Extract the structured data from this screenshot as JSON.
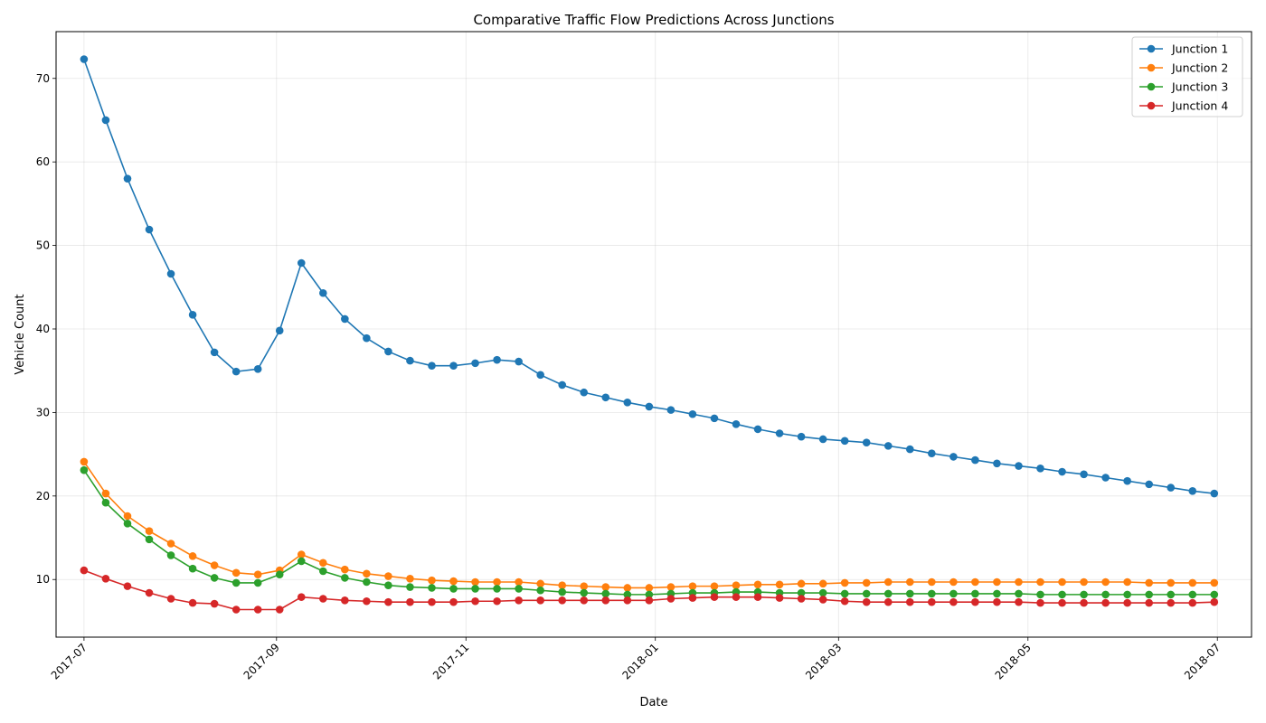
{
  "chart_data": {
    "type": "line",
    "title": "Comparative Traffic Flow Predictions Across Junctions",
    "xlabel": "Date",
    "ylabel": "Vehicle Count",
    "x_axis": {
      "type": "date",
      "range": [
        "2017-06-22",
        "2018-07-12"
      ],
      "ticks": [
        {
          "date": "2017-07-01",
          "label": "2017-07"
        },
        {
          "date": "2017-09-01",
          "label": "2017-09"
        },
        {
          "date": "2017-11-01",
          "label": "2017-11"
        },
        {
          "date": "2018-01-01",
          "label": "2018-01"
        },
        {
          "date": "2018-03-01",
          "label": "2018-03"
        },
        {
          "date": "2018-05-01",
          "label": "2018-05"
        },
        {
          "date": "2018-07-01",
          "label": "2018-07"
        }
      ]
    },
    "ylim": [
      3.1,
      75.6
    ],
    "yticks": [
      10,
      20,
      30,
      40,
      50,
      60,
      70
    ],
    "grid": true,
    "legend_position": "top-right",
    "x": [
      "2017-07-01",
      "2017-07-08",
      "2017-07-15",
      "2017-07-22",
      "2017-07-29",
      "2017-08-05",
      "2017-08-12",
      "2017-08-19",
      "2017-08-26",
      "2017-09-02",
      "2017-09-09",
      "2017-09-16",
      "2017-09-23",
      "2017-09-30",
      "2017-10-07",
      "2017-10-14",
      "2017-10-21",
      "2017-10-28",
      "2017-11-04",
      "2017-11-11",
      "2017-11-18",
      "2017-11-25",
      "2017-12-02",
      "2017-12-09",
      "2017-12-16",
      "2017-12-23",
      "2017-12-30",
      "2018-01-06",
      "2018-01-13",
      "2018-01-20",
      "2018-01-27",
      "2018-02-03",
      "2018-02-10",
      "2018-02-17",
      "2018-02-24",
      "2018-03-03",
      "2018-03-10",
      "2018-03-17",
      "2018-03-24",
      "2018-03-31",
      "2018-04-07",
      "2018-04-14",
      "2018-04-21",
      "2018-04-28",
      "2018-05-05",
      "2018-05-12",
      "2018-05-19",
      "2018-05-26",
      "2018-06-02",
      "2018-06-09",
      "2018-06-16",
      "2018-06-23",
      "2018-06-30"
    ],
    "series": [
      {
        "name": "Junction 1",
        "color": "#1f77b4",
        "values": [
          72.3,
          65.0,
          58.0,
          51.9,
          46.6,
          41.7,
          37.2,
          34.9,
          35.2,
          39.8,
          47.9,
          44.3,
          41.2,
          38.9,
          37.3,
          36.2,
          35.6,
          35.6,
          35.9,
          36.3,
          36.1,
          34.5,
          33.3,
          32.4,
          31.8,
          31.2,
          30.7,
          30.3,
          29.8,
          29.3,
          28.6,
          28.0,
          27.5,
          27.1,
          26.8,
          26.6,
          26.4,
          26.0,
          25.6,
          25.1,
          24.7,
          24.3,
          23.9,
          23.6,
          23.3,
          22.9,
          22.6,
          22.2,
          21.8,
          21.4,
          21.0,
          20.6,
          20.3
        ]
      },
      {
        "name": "Junction 2",
        "color": "#ff7f0e",
        "values": [
          24.1,
          20.3,
          17.6,
          15.8,
          14.3,
          12.8,
          11.7,
          10.8,
          10.6,
          11.1,
          13.0,
          12.0,
          11.2,
          10.7,
          10.4,
          10.1,
          9.9,
          9.8,
          9.7,
          9.7,
          9.7,
          9.5,
          9.3,
          9.2,
          9.1,
          9.0,
          9.0,
          9.1,
          9.2,
          9.2,
          9.3,
          9.4,
          9.4,
          9.5,
          9.5,
          9.6,
          9.6,
          9.7,
          9.7,
          9.7,
          9.7,
          9.7,
          9.7,
          9.7,
          9.7,
          9.7,
          9.7,
          9.7,
          9.7,
          9.6,
          9.6,
          9.6,
          9.6
        ]
      },
      {
        "name": "Junction 3",
        "color": "#2ca02c",
        "values": [
          23.1,
          19.2,
          16.7,
          14.8,
          12.9,
          11.3,
          10.2,
          9.6,
          9.6,
          10.6,
          12.2,
          11.0,
          10.2,
          9.7,
          9.3,
          9.1,
          9.0,
          8.9,
          8.9,
          8.9,
          8.9,
          8.7,
          8.5,
          8.4,
          8.3,
          8.2,
          8.2,
          8.3,
          8.4,
          8.4,
          8.5,
          8.5,
          8.4,
          8.4,
          8.4,
          8.3,
          8.3,
          8.3,
          8.3,
          8.3,
          8.3,
          8.3,
          8.3,
          8.3,
          8.2,
          8.2,
          8.2,
          8.2,
          8.2,
          8.2,
          8.2,
          8.2,
          8.2
        ]
      },
      {
        "name": "Junction 4",
        "color": "#d62728",
        "values": [
          11.1,
          10.1,
          9.2,
          8.4,
          7.7,
          7.2,
          7.1,
          6.4,
          6.4,
          6.4,
          7.9,
          7.7,
          7.5,
          7.4,
          7.3,
          7.3,
          7.3,
          7.3,
          7.4,
          7.4,
          7.5,
          7.5,
          7.5,
          7.5,
          7.5,
          7.5,
          7.5,
          7.7,
          7.8,
          7.9,
          7.9,
          7.9,
          7.8,
          7.7,
          7.6,
          7.4,
          7.3,
          7.3,
          7.3,
          7.3,
          7.3,
          7.3,
          7.3,
          7.3,
          7.2,
          7.2,
          7.2,
          7.2,
          7.2,
          7.2,
          7.2,
          7.2,
          7.3
        ]
      }
    ]
  }
}
